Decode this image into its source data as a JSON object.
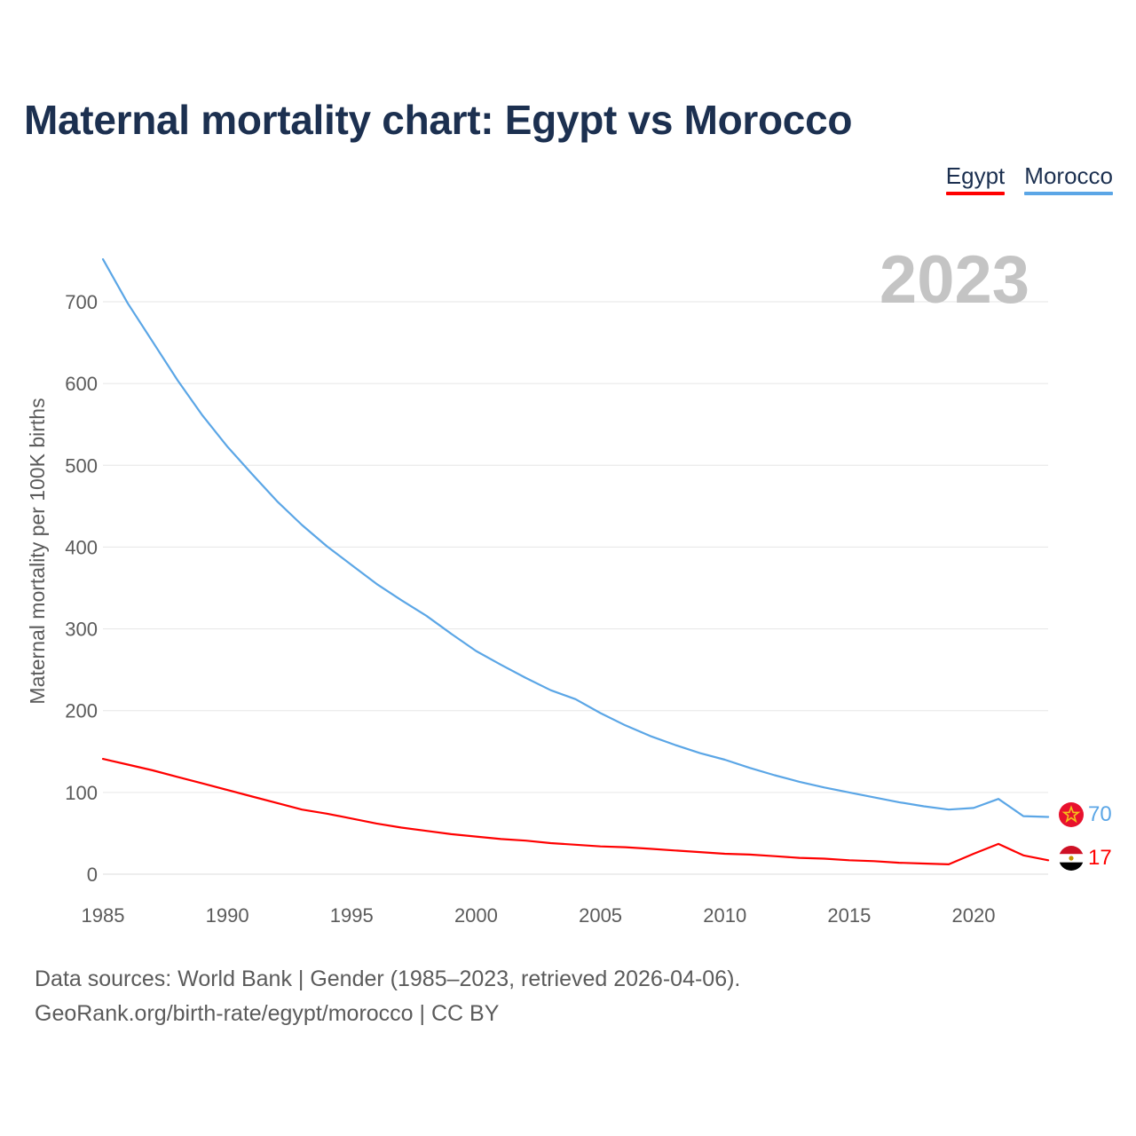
{
  "title": "Maternal mortality chart: Egypt vs Morocco",
  "legend": [
    {
      "label": "Egypt",
      "color": "#ff0000"
    },
    {
      "label": "Morocco",
      "color": "#5ba6e6"
    }
  ],
  "year_label": "2023",
  "footer": {
    "line1": "Data sources: World Bank | Gender (1985–2023, retrieved 2026-04-06).",
    "line2": "GeoRank.org/birth-rate/egypt/morocco | CC BY"
  },
  "end_markers": [
    {
      "series": "Morocco",
      "flag": "morocco-flag-icon",
      "value_label": "70"
    },
    {
      "series": "Egypt",
      "flag": "egypt-flag-icon",
      "value_label": "17"
    }
  ],
  "chart_data": {
    "type": "line",
    "title": "Maternal mortality chart: Egypt vs Morocco",
    "xlabel": "",
    "ylabel": "Maternal mortality per 100K births",
    "xlim": [
      1985,
      2023
    ],
    "ylim": [
      0,
      760
    ],
    "grid": true,
    "legend_position": "top-right",
    "x_ticks": [
      1985,
      1990,
      1995,
      2000,
      2005,
      2010,
      2015,
      2020
    ],
    "y_ticks": [
      0,
      100,
      200,
      300,
      400,
      500,
      600,
      700
    ],
    "x": [
      1985,
      1986,
      1987,
      1988,
      1989,
      1990,
      1991,
      1992,
      1993,
      1994,
      1995,
      1996,
      1997,
      1998,
      1999,
      2000,
      2001,
      2002,
      2003,
      2004,
      2005,
      2006,
      2007,
      2008,
      2009,
      2010,
      2011,
      2012,
      2013,
      2014,
      2015,
      2016,
      2017,
      2018,
      2019,
      2020,
      2021,
      2022,
      2023
    ],
    "series": [
      {
        "name": "Morocco",
        "color": "#5ba6e6",
        "values": [
          752,
          698,
          651,
          604,
          561,
          523,
          489,
          456,
          427,
          401,
          378,
          355,
          335,
          316,
          294,
          273,
          256,
          240,
          225,
          214,
          197,
          182,
          169,
          158,
          148,
          140,
          130,
          121,
          113,
          106,
          100,
          94,
          88,
          83,
          79,
          81,
          92,
          71,
          70
        ]
      },
      {
        "name": "Egypt",
        "color": "#ff0000",
        "values": [
          141,
          134,
          127,
          119,
          111,
          103,
          95,
          87,
          79,
          74,
          68,
          62,
          57,
          53,
          49,
          46,
          43,
          41,
          38,
          36,
          34,
          33,
          31,
          29,
          27,
          25,
          24,
          22,
          20,
          19,
          17,
          16,
          14,
          13,
          12,
          25,
          37,
          23,
          17
        ]
      }
    ]
  }
}
